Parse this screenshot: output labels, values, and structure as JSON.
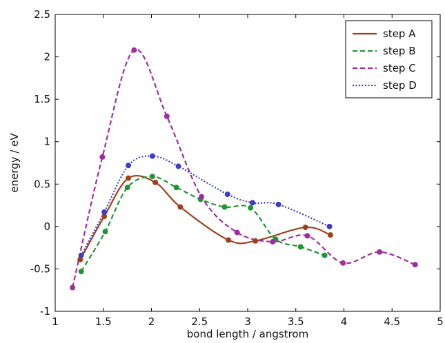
{
  "chart_data": {
    "type": "line",
    "xlabel": "bond length / angstrom",
    "ylabel": "energy / eV",
    "xlim": [
      1,
      5
    ],
    "ylim": [
      -1,
      2.5
    ],
    "xticks": [
      {
        "v": 1,
        "label": "1"
      },
      {
        "v": 1.5,
        "label": "1.5"
      },
      {
        "v": 2,
        "label": "2"
      },
      {
        "v": 2.5,
        "label": "2.5"
      },
      {
        "v": 3,
        "label": "3"
      },
      {
        "v": 3.5,
        "label": "3.5"
      },
      {
        "v": 4,
        "label": "4"
      },
      {
        "v": 4.5,
        "label": "4.5"
      },
      {
        "v": 5,
        "label": "5"
      }
    ],
    "yticks": [
      {
        "v": -1,
        "label": "-1"
      },
      {
        "v": -0.5,
        "label": "-0.5"
      },
      {
        "v": 0,
        "label": "0"
      },
      {
        "v": 0.5,
        "label": "0.5"
      },
      {
        "v": 1,
        "label": "1"
      },
      {
        "v": 1.5,
        "label": "1.5"
      },
      {
        "v": 2,
        "label": "2"
      },
      {
        "v": 2.5,
        "label": "2.5"
      }
    ],
    "grid": false,
    "legend_position": "top-right",
    "series": [
      {
        "name": "step A",
        "color": "#a0401b",
        "style": "solid",
        "points": [
          [
            1.26,
            -0.39
          ],
          [
            1.51,
            0.12
          ],
          [
            1.76,
            0.57
          ],
          [
            2.04,
            0.52
          ],
          [
            2.3,
            0.23
          ],
          [
            2.8,
            -0.16
          ],
          [
            3.08,
            -0.17
          ],
          [
            3.6,
            -0.01
          ],
          [
            3.86,
            -0.1
          ]
        ]
      },
      {
        "name": "step B",
        "color": "#1e9632",
        "style": "dashed",
        "points": [
          [
            1.27,
            -0.53
          ],
          [
            1.52,
            -0.06
          ],
          [
            1.75,
            0.46
          ],
          [
            2.01,
            0.59
          ],
          [
            2.26,
            0.46
          ],
          [
            2.51,
            0.32
          ],
          [
            2.76,
            0.23
          ],
          [
            3.03,
            0.22
          ],
          [
            3.29,
            -0.15
          ],
          [
            3.55,
            -0.24
          ],
          [
            3.8,
            -0.34
          ]
        ]
      },
      {
        "name": "step C",
        "color": "#a02ca0",
        "style": "dashed",
        "points": [
          [
            1.18,
            -0.72
          ],
          [
            1.49,
            0.82
          ],
          [
            1.82,
            2.08
          ],
          [
            2.16,
            1.3
          ],
          [
            2.52,
            0.35
          ],
          [
            2.89,
            -0.07
          ],
          [
            3.26,
            -0.18
          ],
          [
            3.62,
            -0.11
          ],
          [
            3.99,
            -0.43
          ],
          [
            4.37,
            -0.3
          ],
          [
            4.74,
            -0.45
          ]
        ]
      },
      {
        "name": "step D",
        "color": "#3c3cc8",
        "style": "dotted",
        "points": [
          [
            1.27,
            -0.34
          ],
          [
            1.51,
            0.17
          ],
          [
            1.76,
            0.72
          ],
          [
            2.01,
            0.83
          ],
          [
            2.28,
            0.71
          ],
          [
            2.79,
            0.38
          ],
          [
            3.05,
            0.28
          ],
          [
            3.32,
            0.26
          ],
          [
            3.85,
            0.0
          ]
        ]
      }
    ]
  }
}
